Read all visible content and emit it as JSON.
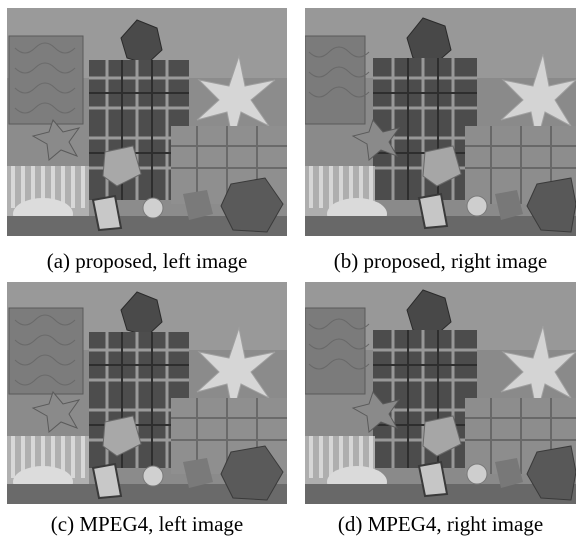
{
  "panels": [
    {
      "caption": "(a) proposed, left image"
    },
    {
      "caption": "(b) proposed, right image"
    },
    {
      "caption": "(c) MPEG4, left image"
    },
    {
      "caption": "(d) MPEG4, right image"
    }
  ],
  "palette": {
    "wall": "#8a8a8a",
    "cloth_dark": "#3a3a3a",
    "cloth_light": "#b8b8b8",
    "star": "#d4d4d4",
    "floor": "#6e6e6e"
  }
}
